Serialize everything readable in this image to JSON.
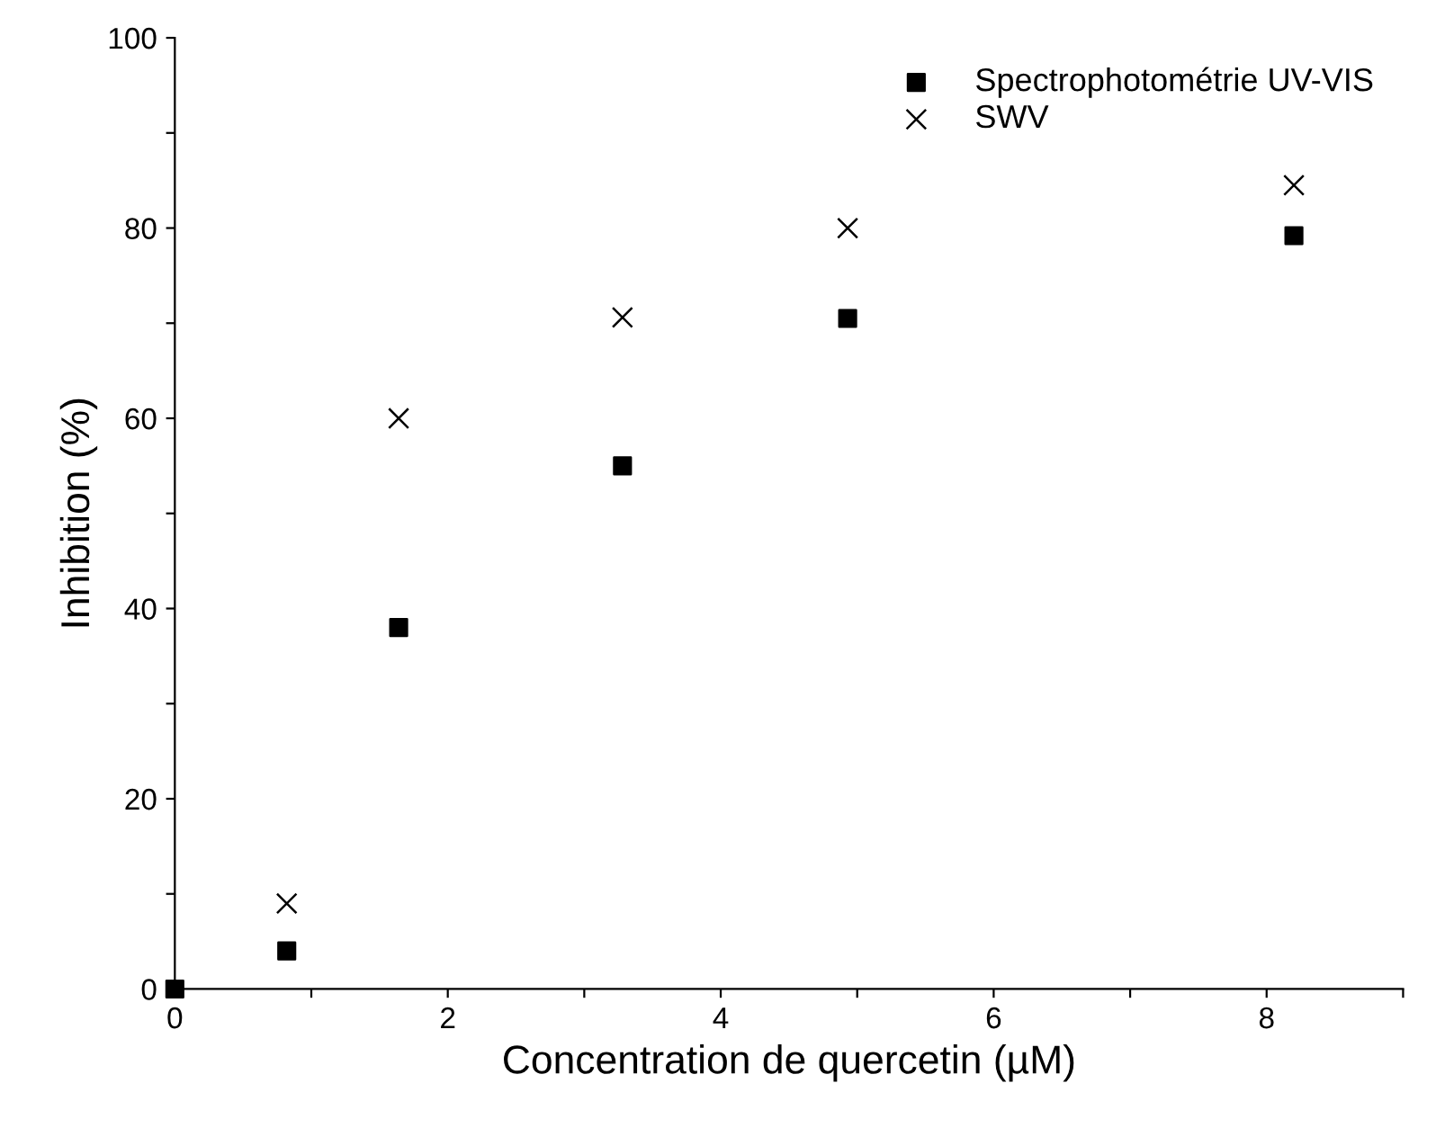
{
  "chart_data": {
    "type": "scatter",
    "xlabel": "Concentration de quercetin (µM)",
    "ylabel": "Inhibition (%)",
    "xlim": [
      0,
      9
    ],
    "ylim": [
      0,
      100
    ],
    "xticks": [
      0,
      {
        "value": 1,
        "label": null
      },
      2,
      {
        "value": 3,
        "label": null
      },
      4,
      {
        "value": 5,
        "label": null
      },
      6,
      {
        "value": 7,
        "label": null
      },
      8,
      {
        "value": 9,
        "label": null
      }
    ],
    "yticks": [
      0,
      {
        "value": 10,
        "label": null
      },
      20,
      {
        "value": 30,
        "label": null
      },
      40,
      {
        "value": 50,
        "label": null
      },
      60,
      {
        "value": 70,
        "label": null
      },
      80,
      {
        "value": 90,
        "label": null
      },
      100
    ],
    "series": [
      {
        "name": "Spectrophotométrie UV-VIS",
        "color": "#000000",
        "marker": "square",
        "x": [
          0,
          0.82,
          1.64,
          3.28,
          4.93,
          8.2
        ],
        "values": [
          0,
          4,
          38,
          55,
          70.5,
          79.2
        ]
      },
      {
        "name": "SWV",
        "color": "#000000",
        "marker": "cross",
        "x": [
          0.82,
          1.64,
          3.28,
          4.93,
          8.2
        ],
        "values": [
          9,
          60,
          70.6,
          80,
          84.5
        ]
      }
    ],
    "legend": "top right",
    "grid": false
  }
}
